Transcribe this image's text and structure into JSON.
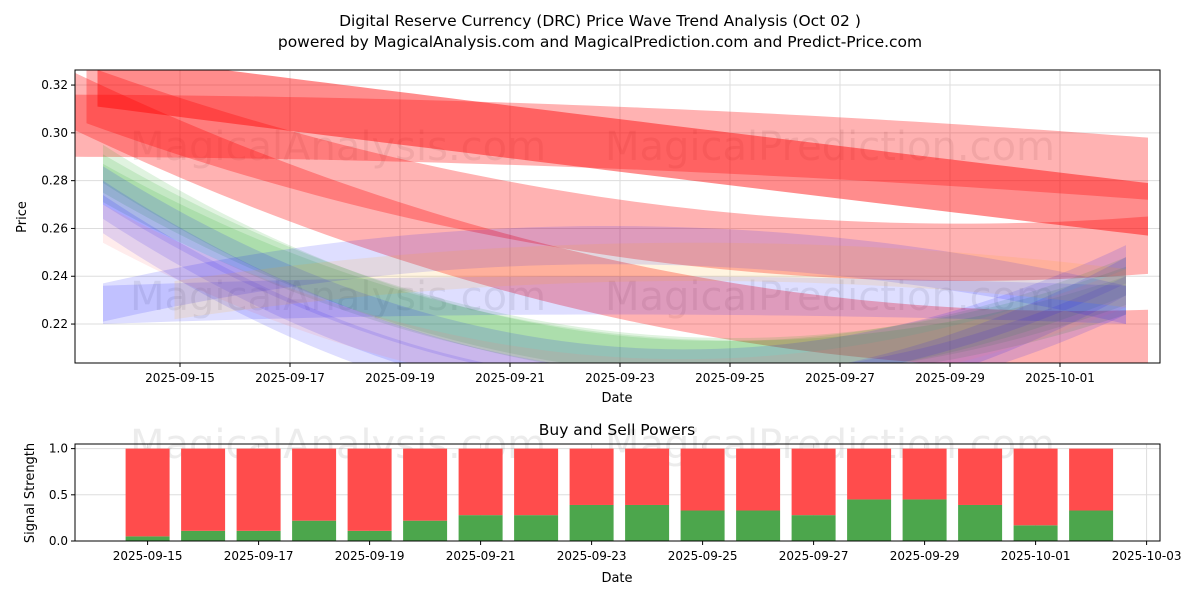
{
  "chart_data": [
    {
      "type": "area",
      "title": "Digital Reserve Currency (DRC) Price Wave Trend Analysis (Oct 02 )",
      "subtitle": "powered by MagicalAnalysis.com and MagicalPrediction.com and Predict-Price.com",
      "xlabel": "Date",
      "ylabel": "Price",
      "ylim": [
        0.2037,
        0.3263
      ],
      "xlim": [
        "2025-09-12.9",
        "2025-10-02.9"
      ],
      "yticks": [
        0.22,
        0.24,
        0.26,
        0.28,
        0.3,
        0.32
      ],
      "xticks": [
        "2025-09-15",
        "2025-09-17",
        "2025-09-19",
        "2025-09-21",
        "2025-09-23",
        "2025-09-25",
        "2025-09-27",
        "2025-09-29",
        "2025-10-01"
      ],
      "grid": true,
      "watermarks": [
        "MagicalAnalysis.com",
        "MagicalPrediction.com"
      ],
      "bands": [
        {
          "color": "#ff0000",
          "opacity": 0.3,
          "width": 0.013,
          "start": [
            0.1,
            0.303
          ],
          "mid": [
            10,
            0.298
          ],
          "end": [
            19.7,
            0.285
          ]
        },
        {
          "color": "#ff0000",
          "opacity": 0.45,
          "width": 0.011,
          "start": [
            0.6,
            0.322
          ],
          "mid": [
            10,
            0.295
          ],
          "end": [
            19.7,
            0.268
          ]
        },
        {
          "color": "#ff0000",
          "opacity": 0.3,
          "width": 0.012,
          "start": [
            0.4,
            0.316
          ],
          "mid": [
            8,
            0.268
          ],
          "end": [
            19.7,
            0.253
          ]
        },
        {
          "color": "#ff0000",
          "opacity": 0.3,
          "width": 0.012,
          "start": [
            0.2,
            0.313
          ],
          "mid": [
            9,
            0.24
          ],
          "end": [
            19.7,
            0.214
          ]
        },
        {
          "color": "#00a000",
          "opacity": 0.12,
          "width": 0.008,
          "start": [
            0.7,
            0.287
          ],
          "mid": [
            8,
            0.215
          ],
          "end": [
            19.3,
            0.24
          ]
        },
        {
          "color": "#00a000",
          "opacity": 0.12,
          "width": 0.008,
          "start": [
            0.7,
            0.283
          ],
          "mid": [
            9,
            0.212
          ],
          "end": [
            19.3,
            0.236
          ]
        },
        {
          "color": "#00a000",
          "opacity": 0.12,
          "width": 0.008,
          "start": [
            0.7,
            0.279
          ],
          "mid": [
            10,
            0.208
          ],
          "end": [
            19.3,
            0.232
          ]
        },
        {
          "color": "#0000ff",
          "opacity": 0.13,
          "width": 0.008,
          "start": [
            0.7,
            0.278
          ],
          "mid": [
            7,
            0.214
          ],
          "end": [
            19.3,
            0.245
          ]
        },
        {
          "color": "#0000ff",
          "opacity": 0.13,
          "width": 0.008,
          "start": [
            0.7,
            0.272
          ],
          "mid": [
            6,
            0.212
          ],
          "end": [
            19.3,
            0.232
          ]
        },
        {
          "color": "#0000ff",
          "opacity": 0.13,
          "width": 0.008,
          "start": [
            0.7,
            0.266
          ],
          "mid": [
            5,
            0.214
          ],
          "end": [
            19.3,
            0.24
          ]
        },
        {
          "color": "#ff8080",
          "opacity": 0.15,
          "width": 0.008,
          "start": [
            0.7,
            0.262
          ],
          "mid": [
            5,
            0.22
          ],
          "end": [
            19.3,
            0.235
          ]
        },
        {
          "color": "#0000ff",
          "opacity": 0.13,
          "width": 0.008,
          "start": [
            0.7,
            0.229
          ],
          "mid": [
            8,
            0.252
          ],
          "end": [
            19.3,
            0.228
          ]
        },
        {
          "color": "#0000ff",
          "opacity": 0.13,
          "width": 0.008,
          "start": [
            0.7,
            0.228
          ],
          "mid": [
            10,
            0.232
          ],
          "end": [
            19.3,
            0.228
          ]
        },
        {
          "color": "#ffa500",
          "opacity": 0.12,
          "width": 0.008,
          "start": [
            2,
            0.23
          ],
          "mid": [
            11,
            0.246
          ],
          "end": [
            19.3,
            0.235
          ]
        }
      ]
    },
    {
      "type": "bar",
      "title": "Buy and Sell Powers",
      "xlabel": "Date",
      "ylabel": "Signal Strength",
      "ylim": [
        0,
        1.05
      ],
      "yticks": [
        "0.0",
        "0.5",
        "1.0"
      ],
      "xticks": [
        "2025-09-15",
        "2025-09-17",
        "2025-09-19",
        "2025-09-21",
        "2025-09-23",
        "2025-09-25",
        "2025-09-27",
        "2025-09-29",
        "2025-10-01",
        "2025-10-03"
      ],
      "categories": [
        "2025-09-15",
        "2025-09-16",
        "2025-09-17",
        "2025-09-18",
        "2025-09-19",
        "2025-09-20",
        "2025-09-21",
        "2025-09-22",
        "2025-09-23",
        "2025-09-24",
        "2025-09-25",
        "2025-09-26",
        "2025-09-27",
        "2025-09-28",
        "2025-09-29",
        "2025-09-30",
        "2025-10-01",
        "2025-10-02"
      ],
      "series": [
        {
          "name": "Buy",
          "color": "#4ca64c",
          "values": [
            0.05,
            0.11,
            0.11,
            0.22,
            0.11,
            0.22,
            0.28,
            0.28,
            0.39,
            0.39,
            0.33,
            0.33,
            0.28,
            0.45,
            0.45,
            0.39,
            0.17,
            0.33
          ]
        },
        {
          "name": "Sell",
          "color": "#ff4c4c",
          "values": [
            0.95,
            0.89,
            0.89,
            0.78,
            0.89,
            0.78,
            0.72,
            0.72,
            0.61,
            0.61,
            0.67,
            0.67,
            0.72,
            0.55,
            0.55,
            0.61,
            0.83,
            0.67
          ]
        }
      ]
    }
  ]
}
